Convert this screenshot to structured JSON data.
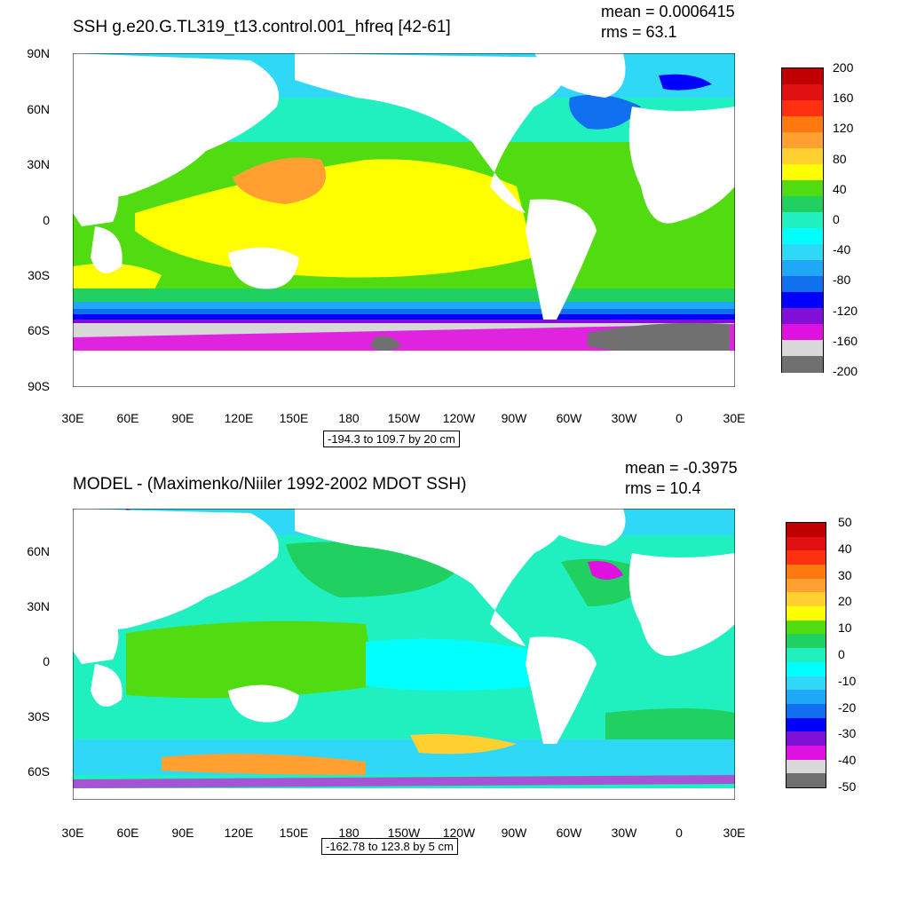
{
  "panels": [
    {
      "title": "SSH g.e20.G.TL319_t13.control.001_hfreq [42-61]",
      "mean_text": "mean = 0.0006415",
      "rms_text": "rms = 63.1",
      "range_text": "-194.3 to 109.7 by 20 cm",
      "lat_labels": [
        "90N",
        "60N",
        "30N",
        "0",
        "30S",
        "60S",
        "90S"
      ],
      "lon_labels": [
        "30E",
        "60E",
        "90E",
        "120E",
        "150E",
        "180",
        "150W",
        "120W",
        "90W",
        "60W",
        "30W",
        "0",
        "30E"
      ],
      "colorbar": {
        "labels": [
          "200",
          "160",
          "120",
          "80",
          "40",
          "0",
          "-40",
          "-80",
          "-120",
          "-160",
          "-200"
        ],
        "colors": [
          "#c00000",
          "#e01010",
          "#ff3010",
          "#ff7810",
          "#ffa030",
          "#ffd030",
          "#ffff00",
          "#50dc10",
          "#20d060",
          "#20f0c0",
          "#00ffff",
          "#30d8f8",
          "#20a8f8",
          "#1070f0",
          "#0000ff",
          "#8010d8",
          "#e010e0",
          "#d8d8d8",
          "#707070"
        ]
      }
    },
    {
      "title": "MODEL - (Maximenko/Niiler 1992-2002 MDOT SSH)",
      "mean_text": "mean = -0.3975",
      "rms_text": "rms = 10.4",
      "range_text": "-162.78 to 123.8 by 5 cm",
      "lat_labels": [
        "60N",
        "30N",
        "0",
        "30S",
        "60S"
      ],
      "lon_labels": [
        "30E",
        "60E",
        "90E",
        "120E",
        "150E",
        "180",
        "150W",
        "120W",
        "90W",
        "60W",
        "30W",
        "0",
        "30E"
      ],
      "colorbar": {
        "labels": [
          "50",
          "40",
          "30",
          "20",
          "10",
          "0",
          "-10",
          "-20",
          "-30",
          "-40",
          "-50"
        ],
        "colors": [
          "#c00000",
          "#e01010",
          "#ff3010",
          "#ff7810",
          "#ffa030",
          "#ffd030",
          "#ffff00",
          "#50dc10",
          "#20d060",
          "#20f0c0",
          "#00ffff",
          "#30d8f8",
          "#20a8f8",
          "#1070f0",
          "#0000ff",
          "#8010d8",
          "#e010e0",
          "#d8d8d8",
          "#707070"
        ]
      }
    }
  ]
}
